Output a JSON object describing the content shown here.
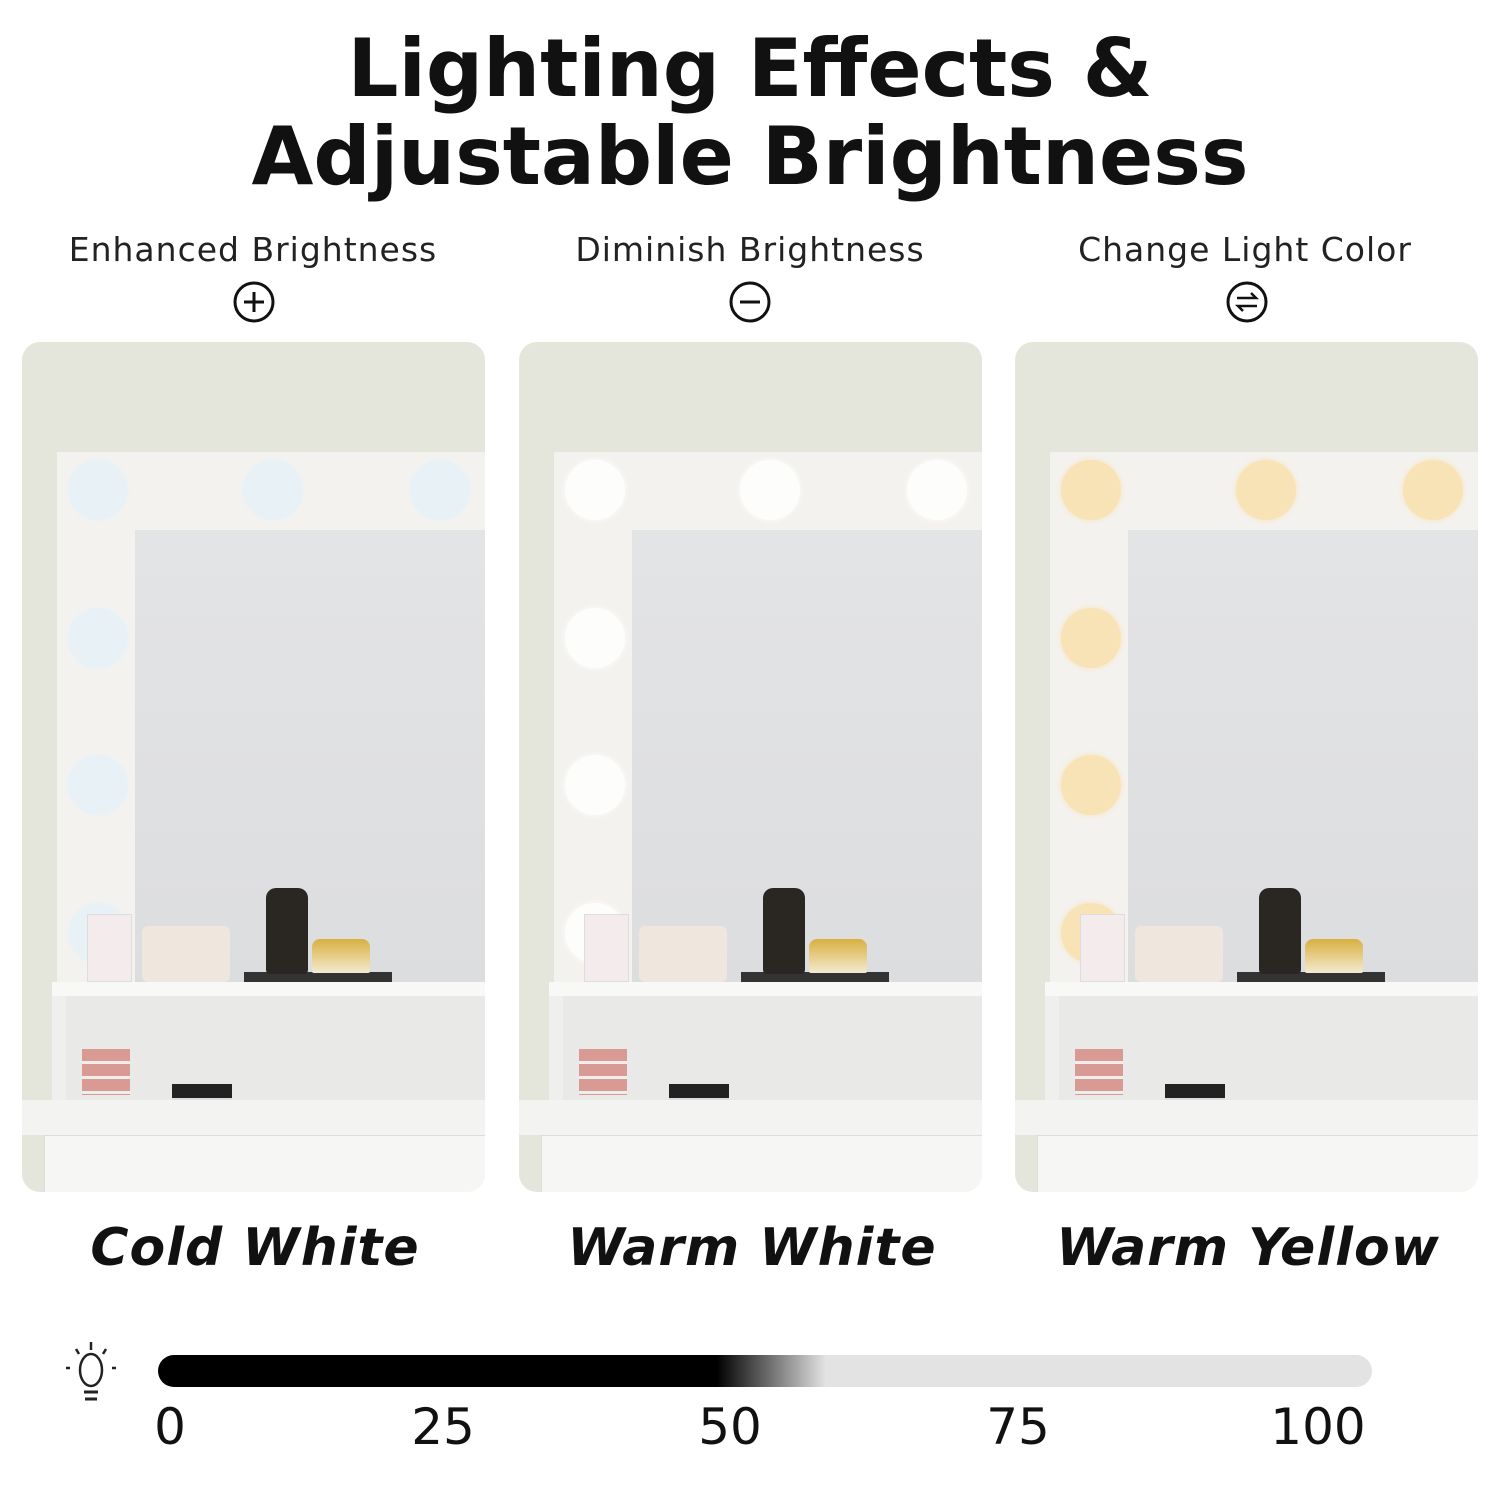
{
  "title": {
    "line1": "Lighting Effects &",
    "line2": "Adjustable Brightness"
  },
  "features": [
    {
      "label": "Enhanced Brightness",
      "icon": "plus-circle-icon"
    },
    {
      "label": "Diminish Brightness",
      "icon": "minus-circle-icon"
    },
    {
      "label": "Change Light Color",
      "icon": "swap-circle-icon"
    }
  ],
  "modes": [
    {
      "label": "Cold White",
      "bulb_color": "#e8f2f6"
    },
    {
      "label": "Warm White",
      "bulb_color": "#fdfdfb"
    },
    {
      "label": "Warm Yellow",
      "bulb_color": "#f8e3b6"
    }
  ],
  "brightness": {
    "icon": "lightbulb-icon",
    "ticks": [
      "0",
      "25",
      "50",
      "75",
      "100"
    ],
    "level_percent": 50,
    "fill_color": "#000000",
    "track_color": "#e3e3e3"
  }
}
